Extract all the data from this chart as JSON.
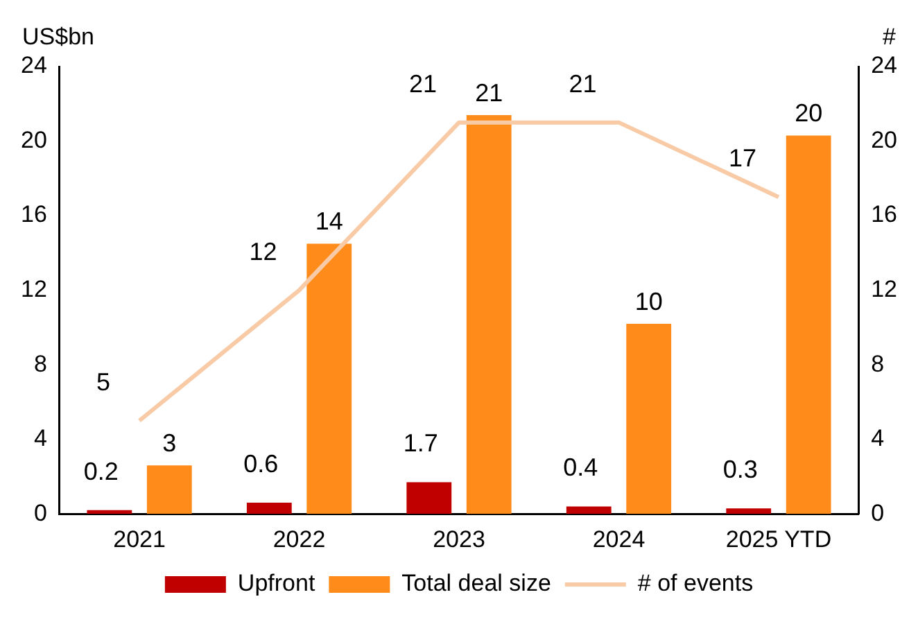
{
  "chart_data": {
    "type": "bar",
    "ylabel": "US$bn",
    "y2label": "#",
    "categories": [
      "2021",
      "2022",
      "2023",
      "2024",
      "2025 YTD"
    ],
    "series": [
      {
        "name": "Upfront",
        "color": "#c00000",
        "values": [
          0.2,
          0.6,
          1.7,
          0.4,
          0.3
        ],
        "value_labels": [
          "0.2",
          "0.6",
          "1.7",
          "0.4",
          "0.3"
        ]
      },
      {
        "name": "Total deal size",
        "color": "#ff8c1a",
        "values": [
          2.6,
          14.5,
          21.4,
          10.2,
          20.3
        ],
        "value_labels": [
          "3",
          "14",
          "21",
          "10",
          "20"
        ]
      },
      {
        "name": "# of events",
        "type": "line",
        "axis": "y2",
        "color": "#f8cba6",
        "values": [
          5,
          12,
          21,
          21,
          17
        ],
        "value_labels": [
          "5",
          "12",
          "21",
          "21",
          "17"
        ]
      }
    ],
    "ylim": [
      0,
      24
    ],
    "yticks": [
      0,
      4,
      8,
      12,
      16,
      20,
      24
    ],
    "y2lim": [
      0,
      24
    ],
    "y2ticks": [
      0,
      4,
      8,
      12,
      16,
      20,
      24
    ],
    "grid": false,
    "legend": "bottom",
    "marker": "none"
  }
}
